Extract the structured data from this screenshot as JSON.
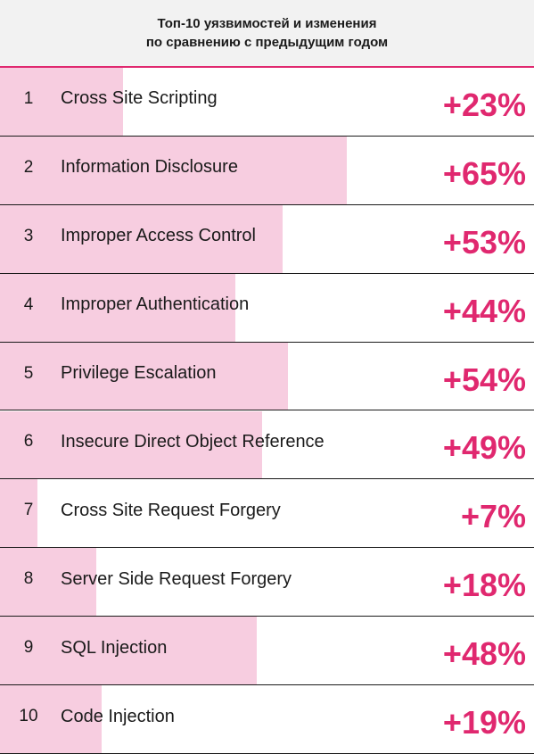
{
  "title": {
    "line1": "Топ-10 уязвимостей и изменения",
    "line2": "по сравнению с предыдущим годом"
  },
  "colors": {
    "accent": "#e0286f",
    "bar": "#f7cde0",
    "header_bg": "#f2f2f2"
  },
  "chart_data": {
    "type": "bar",
    "orientation": "horizontal",
    "title": "Топ-10 уязвимостей и изменения по сравнению с предыдущим годом",
    "ranks": [
      "1",
      "2",
      "3",
      "4",
      "5",
      "6",
      "7",
      "8",
      "9",
      "10"
    ],
    "categories": [
      "Cross Site Scripting",
      "Information Disclosure",
      "Improper Access Control",
      "Improper Authentication",
      "Privilege Escalation",
      "Insecure Direct Object Reference",
      "Cross Site Request Forgery",
      "Server Side Request Forgery",
      "SQL Injection",
      "Code Injection"
    ],
    "values": [
      23,
      65,
      53,
      44,
      54,
      49,
      7,
      18,
      48,
      19
    ],
    "labels": [
      "+23%",
      "+65%",
      "+53%",
      "+44%",
      "+54%",
      "+49%",
      "+7%",
      "+18%",
      "+48%",
      "+19%"
    ],
    "unit": "%",
    "xlim": [
      0,
      100
    ],
    "grid": false,
    "legend": "none"
  }
}
